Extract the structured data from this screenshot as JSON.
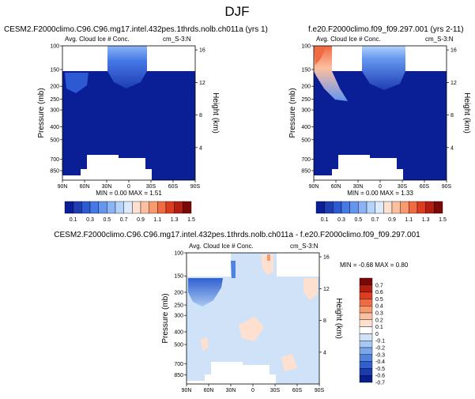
{
  "figure": {
    "title": "DJF"
  },
  "chart_data": [
    {
      "type": "heatmap",
      "title": "CESM2.F2000climo.C96.C96.mg17.intel.432pes.1thrds.nolb.ch011a (yrs 1)",
      "left_label": "Avg. Cloud Ice # Conc.",
      "right_label": "cm_S-3:N",
      "ylabel": "Pressure (mb)",
      "right_ylabel": "Height (km)",
      "xticks": [
        "90N",
        "60N",
        "30N",
        "0",
        "30S",
        "60S",
        "90S"
      ],
      "yticks": [
        "100",
        "150",
        "200",
        "250",
        "300",
        "400",
        "500",
        "700",
        "850"
      ],
      "right_yticks": [
        "16",
        "12",
        "8",
        "4"
      ],
      "stats": "MIN =  0.00  MAX =  1.51",
      "colorbar_labels": [
        "0.1",
        "0.3",
        "0.5",
        "0.7",
        "0.9",
        "1.1",
        "1.3",
        "1.5"
      ]
    },
    {
      "type": "heatmap",
      "title": "f.e20.F2000climo.f09_f09.297.001 (yrs 2-11)",
      "left_label": "Avg. Cloud Ice # Conc.",
      "right_label": "cm_S-3:N",
      "ylabel": "Pressure (mb)",
      "right_ylabel": "Height (km)",
      "xticks": [
        "90N",
        "60N",
        "30N",
        "0",
        "30S",
        "60S",
        "90S"
      ],
      "yticks": [
        "100",
        "150",
        "200",
        "250",
        "300",
        "400",
        "500",
        "700",
        "850"
      ],
      "right_yticks": [
        "16",
        "12",
        "8",
        "4"
      ],
      "stats": "MIN =  0.00  MAX =  1.33",
      "colorbar_labels": [
        "0.1",
        "0.3",
        "0.5",
        "0.7",
        "0.9",
        "1.1",
        "1.3",
        "1.5"
      ]
    },
    {
      "type": "heatmap",
      "title": "CESM2.F2000climo.C96.C96.mg17.intel.432pes.1thrds.nolb.ch011a - f.e20.F2000climo.f09_f09.297.001",
      "left_label": "Avg. Cloud Ice # Conc.",
      "right_label": "cm_S-3:N",
      "ylabel": "Pressure (mb)",
      "right_ylabel": "Height (km)",
      "xticks": [
        "90N",
        "60N",
        "30N",
        "0",
        "30S",
        "60S",
        "90S"
      ],
      "yticks": [
        "100",
        "150",
        "200",
        "250",
        "300",
        "400",
        "500",
        "700",
        "850"
      ],
      "right_yticks": [
        "16",
        "12",
        "8",
        "4"
      ],
      "stats": "MIN = -0.68  MAX =  0.80",
      "colorbar_labels": [
        "0.7",
        "0.6",
        "0.5",
        "0.4",
        "0.3",
        "0.2",
        "0.1",
        "0",
        "-0.1",
        "-0.2",
        "-0.3",
        "-0.4",
        "-0.5",
        "-0.6",
        "-0.7"
      ]
    }
  ],
  "colors": {
    "seq": [
      "#0a1e96",
      "#1e3cb4",
      "#2d5ad2",
      "#4678e6",
      "#6496f0",
      "#8cb4f5",
      "#b4d2fa",
      "#dceafd",
      "#fde0d0",
      "#fcc0a0",
      "#f89a6e",
      "#f06a42",
      "#dc3c20",
      "#b41e10",
      "#7a0806"
    ],
    "div": [
      "#7a0806",
      "#b41e10",
      "#dc3c20",
      "#f06a42",
      "#f89a6e",
      "#fcc0a0",
      "#fde0d0",
      "#ffffff",
      "#cfe2f8",
      "#a8c8f2",
      "#7aa6ea",
      "#5082e0",
      "#3060d0",
      "#1a3cb0",
      "#08208a"
    ]
  }
}
